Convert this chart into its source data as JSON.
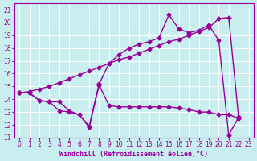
{
  "background_color": "#c8eef0",
  "line_color": "#990099",
  "grid_color": "#ffffff",
  "xlabel": "Windchill (Refroidissement éolien,°C)",
  "xlim": [
    -0.5,
    23.5
  ],
  "ylim": [
    11,
    21.5
  ],
  "xticks": [
    0,
    1,
    2,
    3,
    4,
    5,
    6,
    7,
    8,
    9,
    10,
    11,
    12,
    13,
    14,
    15,
    16,
    17,
    18,
    19,
    20,
    21,
    22,
    23
  ],
  "yticks": [
    11,
    12,
    13,
    14,
    15,
    16,
    17,
    18,
    19,
    20,
    21
  ],
  "line1_x": [
    0,
    1,
    2,
    3,
    4,
    5,
    6,
    7,
    8,
    9,
    10,
    11,
    12,
    13,
    14,
    15,
    16,
    17,
    18,
    19,
    20,
    21,
    22
  ],
  "line1_y": [
    14.5,
    14.5,
    13.9,
    13.8,
    13.8,
    13.1,
    12.8,
    11.8,
    15.1,
    13.5,
    13.4,
    13.4,
    13.4,
    13.4,
    13.4,
    13.4,
    13.3,
    13.2,
    13.0,
    13.0,
    12.8,
    12.8,
    12.5
  ],
  "line2_x": [
    0,
    1,
    2,
    3,
    4,
    5,
    6,
    7,
    8,
    9,
    10,
    11,
    12,
    13,
    14,
    15,
    16,
    17,
    18,
    19,
    20,
    21,
    22
  ],
  "line2_y": [
    14.5,
    14.6,
    14.8,
    15.0,
    15.3,
    15.6,
    15.9,
    16.2,
    16.5,
    16.8,
    17.1,
    17.3,
    17.6,
    17.9,
    18.2,
    18.5,
    18.7,
    19.0,
    19.3,
    19.6,
    20.3,
    20.4,
    12.5
  ],
  "line3_x": [
    0,
    1,
    2,
    3,
    4,
    5,
    6,
    7,
    8,
    9,
    10,
    11,
    12,
    13,
    14,
    15,
    16,
    17,
    18,
    19,
    20,
    21,
    22
  ],
  "line3_y": [
    14.5,
    14.5,
    13.9,
    13.8,
    13.1,
    13.0,
    12.8,
    11.9,
    15.2,
    16.8,
    17.5,
    18.0,
    18.3,
    18.5,
    18.8,
    20.6,
    19.5,
    19.2,
    19.4,
    19.8,
    18.6,
    11.2,
    12.6
  ],
  "marker": "D",
  "marker_size": 2.5,
  "linewidth": 1.0,
  "tick_fontsize": 5.5,
  "label_fontsize": 6.0
}
